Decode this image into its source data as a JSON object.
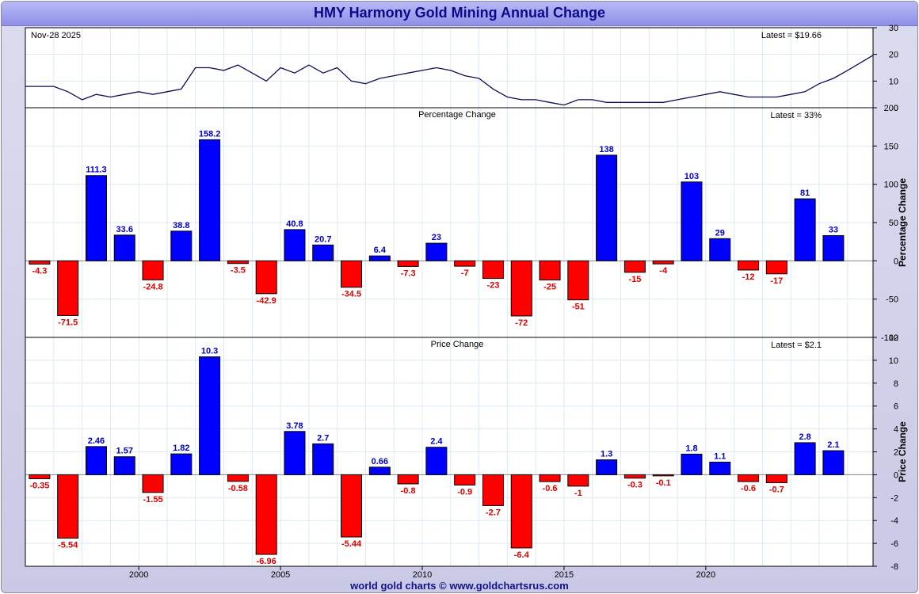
{
  "title": "HMY Harmony Gold Mining Annual Change",
  "footer": "world gold charts © www.goldchartsrus.com",
  "colors": {
    "positive": "#0000ff",
    "negative": "#ff0000",
    "price_line": "#0d0d52",
    "positive_label": "#0000cc",
    "negative_label": "#e00000"
  },
  "chart_data": [
    {
      "type": "line",
      "panel": "price",
      "date_label": "Nov-28  2025",
      "latest_label": "Latest = $19.66",
      "ylim": [
        0,
        30
      ],
      "yticks": [
        0,
        10,
        20,
        30
      ],
      "x": [
        "1996",
        "1996.5",
        "1997",
        "1997.5",
        "1998",
        "1998.5",
        "1999",
        "1999.5",
        "2000",
        "2000.5",
        "2001",
        "2001.5",
        "2002",
        "2002.5",
        "2003",
        "2003.5",
        "2004",
        "2004.5",
        "2005",
        "2005.5",
        "2006",
        "2006.5",
        "2007",
        "2007.5",
        "2008",
        "2008.5",
        "2009",
        "2009.5",
        "2010",
        "2010.5",
        "2011",
        "2011.5",
        "2012",
        "2012.5",
        "2013",
        "2013.5",
        "2014",
        "2014.5",
        "2015",
        "2015.5",
        "2016",
        "2016.5",
        "2017",
        "2017.5",
        "2018",
        "2018.5",
        "2019",
        "2019.5",
        "2020",
        "2020.5",
        "2021",
        "2021.5",
        "2022",
        "2022.5",
        "2023",
        "2023.5",
        "2024",
        "2024.5",
        "2025",
        "2025.9"
      ],
      "values": [
        8,
        8,
        8,
        6,
        3,
        5,
        4,
        5,
        6,
        5,
        6,
        7,
        15,
        15,
        14,
        16,
        13,
        10,
        15,
        13,
        16,
        13,
        15,
        10,
        9,
        11,
        12,
        13,
        14,
        15,
        14,
        12,
        11,
        7,
        4,
        3,
        3,
        2,
        1,
        3,
        3,
        2,
        2,
        2,
        2,
        2,
        3,
        4,
        5,
        6,
        5,
        4,
        4,
        4,
        5,
        6,
        9,
        11,
        14,
        19.66
      ]
    },
    {
      "type": "bar",
      "panel": "percentage",
      "subtitle": "Percentage Change",
      "latest_label": "Latest = 33%",
      "ylabel": "Percentage Change",
      "ylim": [
        -100,
        200
      ],
      "yticks": [
        -100,
        -50,
        0,
        50,
        100,
        150,
        200
      ],
      "categories": [
        1996,
        1997,
        1998,
        1999,
        2000,
        2001,
        2002,
        2003,
        2004,
        2005,
        2006,
        2007,
        2008,
        2009,
        2010,
        2011,
        2012,
        2013,
        2014,
        2015,
        2016,
        2017,
        2018,
        2019,
        2020,
        2021,
        2022,
        2023,
        2024
      ],
      "values": [
        -4.3,
        -71.5,
        111.3,
        33.6,
        -24.8,
        38.8,
        158.2,
        -3.5,
        -42.9,
        40.8,
        20.7,
        -34.5,
        6.4,
        -7.3,
        23,
        -7,
        -23,
        -72,
        -25,
        -51,
        138,
        -15,
        -4,
        103,
        29,
        -12,
        -17,
        81,
        33
      ],
      "labels": [
        "-4.3",
        "-71.5",
        "111.3",
        "33.6",
        "-24.8",
        "38.8",
        "158.2",
        "-3.5",
        "-42.9",
        "40.8",
        "20.7",
        "-34.5",
        "6.4",
        "-7.3",
        "23",
        "-7",
        "-23",
        "-72",
        "-25",
        "-51",
        "138",
        "-15",
        "-4",
        "103",
        "29",
        "-12",
        "-17",
        "81",
        "33"
      ]
    },
    {
      "type": "bar",
      "panel": "price-change",
      "subtitle": "Price Change",
      "latest_label": "Latest = $2.1",
      "ylabel": "Price Change",
      "ylim": [
        -8,
        12
      ],
      "yticks": [
        -8,
        -6,
        -4,
        -2,
        0,
        2,
        4,
        6,
        8,
        10,
        12
      ],
      "categories": [
        1996,
        1997,
        1998,
        1999,
        2000,
        2001,
        2002,
        2003,
        2004,
        2005,
        2006,
        2007,
        2008,
        2009,
        2010,
        2011,
        2012,
        2013,
        2014,
        2015,
        2016,
        2017,
        2018,
        2019,
        2020,
        2021,
        2022,
        2023,
        2024
      ],
      "values": [
        -0.35,
        -5.54,
        2.46,
        1.57,
        -1.55,
        1.82,
        10.3,
        -0.58,
        -6.96,
        3.78,
        2.7,
        -5.44,
        0.66,
        -0.8,
        2.4,
        -0.9,
        -2.7,
        -6.4,
        -0.6,
        -1,
        1.3,
        -0.3,
        -0.1,
        1.8,
        1.1,
        -0.6,
        -0.7,
        2.8,
        2.1
      ],
      "labels": [
        "-0.35",
        "-5.54",
        "2.46",
        "1.57",
        "-1.55",
        "1.82",
        "10.3",
        "-0.58",
        "-6.96",
        "3.78",
        "2.7",
        "-5.44",
        "0.66",
        "-0.8",
        "2.4",
        "-0.9",
        "-2.7",
        "-6.4",
        "-0.6",
        "-1",
        "1.3",
        "-0.3",
        "-0.1",
        "1.8",
        "1.1",
        "-0.6",
        "-0.7",
        "2.8",
        "2.1"
      ]
    }
  ],
  "x_axis": {
    "ticks": [
      2000,
      2005,
      2010,
      2015,
      2020
    ]
  }
}
